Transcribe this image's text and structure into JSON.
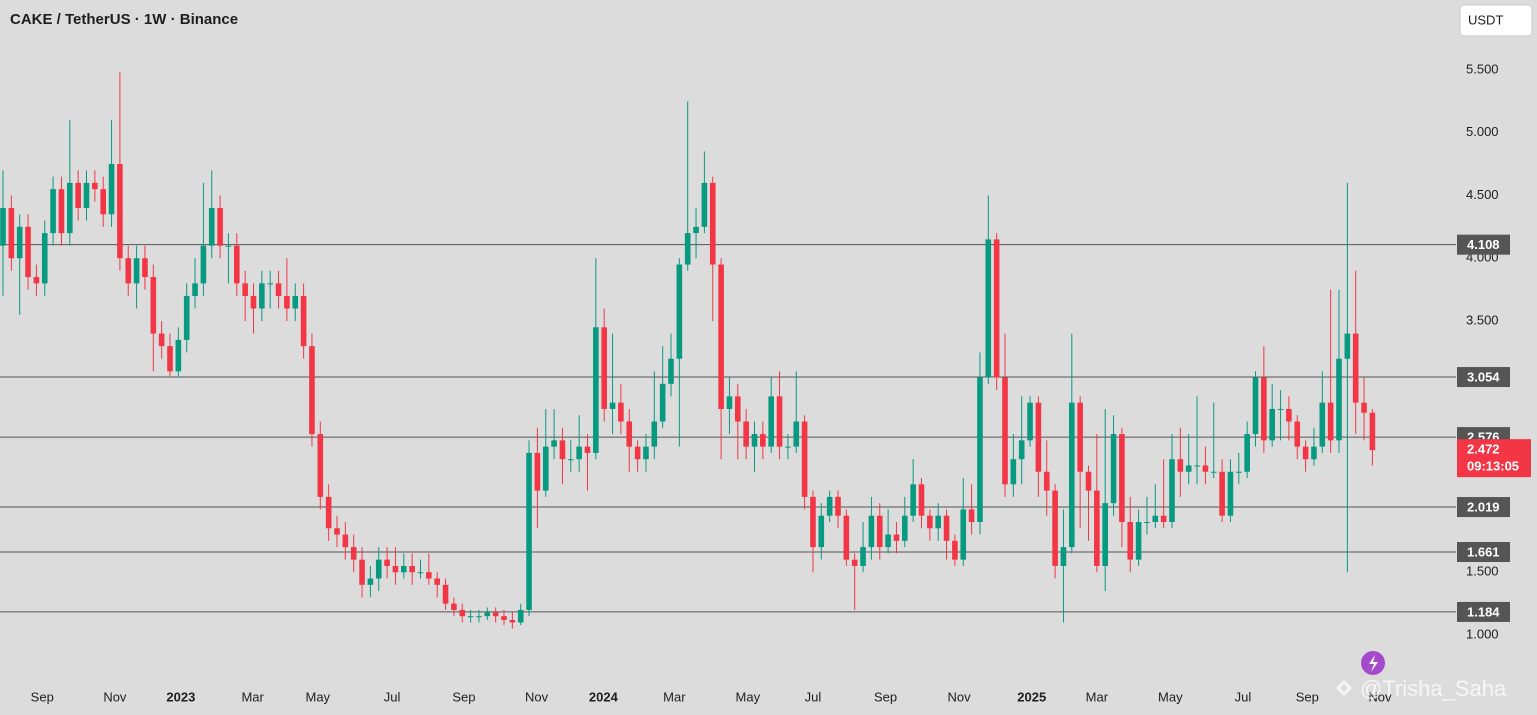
{
  "chart_data": {
    "type": "candlestick",
    "title": "CAKE / TetherUS · 1W · Binance",
    "currency": "USDT",
    "countdown": "09:13:05",
    "watermark": "@Trisha_Saha",
    "up_color": "#089981",
    "down_color": "#f23645",
    "level_color": "#555555",
    "open": [
      4.1,
      4.4,
      4.0,
      4.25,
      3.85,
      3.8,
      4.2,
      4.55,
      4.2,
      4.6,
      4.4,
      4.6,
      4.55,
      4.35,
      4.75,
      4.0,
      3.8,
      4.0,
      3.85,
      3.4,
      3.3,
      3.1,
      3.35,
      3.7,
      3.8,
      4.1,
      4.4,
      4.1,
      4.1,
      3.8,
      3.7,
      3.6,
      3.8,
      3.8,
      3.7,
      3.6,
      3.7,
      3.3,
      2.6,
      2.1,
      1.85,
      1.8,
      1.7,
      1.6,
      1.4,
      1.45,
      1.6,
      1.55,
      1.5,
      1.55,
      1.5,
      1.5,
      1.45,
      1.4,
      1.25,
      1.2,
      1.15,
      1.15,
      1.15,
      1.18,
      1.15,
      1.12,
      1.1,
      1.2,
      2.45,
      2.15,
      2.5,
      2.55,
      2.4,
      2.4,
      2.5,
      2.45,
      3.45,
      2.8,
      2.85,
      2.7,
      2.5,
      2.4,
      2.5,
      2.7,
      3.0,
      3.2,
      3.95,
      4.2,
      4.25,
      4.6,
      3.95,
      2.8,
      2.9,
      2.7,
      2.5,
      2.6,
      2.5,
      2.9,
      2.5,
      2.5,
      2.7,
      2.1,
      1.7,
      1.95,
      2.1,
      1.95,
      1.6,
      1.55,
      1.7,
      1.95,
      1.7,
      1.8,
      1.75,
      1.95,
      2.2,
      1.95,
      1.85,
      1.95,
      1.75,
      1.6,
      2.0,
      1.9,
      3.05,
      4.15,
      3.05,
      2.2,
      2.4,
      2.55,
      2.85,
      2.3,
      2.15,
      1.55,
      1.7,
      2.85,
      2.3,
      2.15,
      1.55,
      2.05,
      2.6,
      1.9,
      1.6,
      1.9,
      1.9,
      1.95,
      1.9,
      2.4,
      2.3,
      2.35,
      2.35,
      2.3,
      2.3,
      1.95,
      2.3,
      2.3,
      2.6,
      3.05,
      2.55,
      2.8,
      2.8,
      2.7,
      2.5,
      2.4,
      2.5,
      2.85,
      2.55,
      3.2,
      3.4,
      2.85,
      2.77
    ],
    "high": [
      4.7,
      4.5,
      4.35,
      4.35,
      3.95,
      4.3,
      4.65,
      4.65,
      5.1,
      4.7,
      4.7,
      4.7,
      4.65,
      5.1,
      5.48,
      4.1,
      4.1,
      4.1,
      3.95,
      3.5,
      3.4,
      3.45,
      3.8,
      4.0,
      4.6,
      4.7,
      4.5,
      4.2,
      4.2,
      3.9,
      3.8,
      3.9,
      3.9,
      3.9,
      4.0,
      3.8,
      3.8,
      3.4,
      2.7,
      2.2,
      1.95,
      1.9,
      1.8,
      1.7,
      1.55,
      1.7,
      1.7,
      1.7,
      1.65,
      1.65,
      1.6,
      1.65,
      1.5,
      1.45,
      1.3,
      1.25,
      1.2,
      1.2,
      1.22,
      1.22,
      1.2,
      1.18,
      1.25,
      2.55,
      2.65,
      2.8,
      2.8,
      2.65,
      2.55,
      2.75,
      2.6,
      4.0,
      3.6,
      3.4,
      3.0,
      2.8,
      2.55,
      2.6,
      3.1,
      3.3,
      3.4,
      4.0,
      5.25,
      4.4,
      4.85,
      4.65,
      4.0,
      3.05,
      3.0,
      2.8,
      2.7,
      2.7,
      3.05,
      3.1,
      2.6,
      3.1,
      2.75,
      2.15,
      2.05,
      2.15,
      2.15,
      2.0,
      1.65,
      1.9,
      2.1,
      2.05,
      2.0,
      1.9,
      2.1,
      2.4,
      2.25,
      2.0,
      2.05,
      2.0,
      1.8,
      2.25,
      2.2,
      3.25,
      4.5,
      4.2,
      3.4,
      2.6,
      2.9,
      2.9,
      2.9,
      2.55,
      2.2,
      2.0,
      3.4,
      2.9,
      2.35,
      2.6,
      2.8,
      2.75,
      2.65,
      2.1,
      2.0,
      2.1,
      2.2,
      2.4,
      2.6,
      2.65,
      2.6,
      2.9,
      2.5,
      2.85,
      2.4,
      2.4,
      2.45,
      2.7,
      3.1,
      3.3,
      3.0,
      2.95,
      2.9,
      2.75,
      2.55,
      2.65,
      3.1,
      3.75,
      3.75,
      4.6,
      3.9,
      3.05,
      2.8
    ],
    "low": [
      3.7,
      3.9,
      3.55,
      3.75,
      3.7,
      3.7,
      4.1,
      4.1,
      4.1,
      4.3,
      4.3,
      4.45,
      4.25,
      4.25,
      3.9,
      3.7,
      3.6,
      3.75,
      3.1,
      3.2,
      3.05,
      3.05,
      3.25,
      3.6,
      3.7,
      4.0,
      4.0,
      3.8,
      3.7,
      3.5,
      3.4,
      3.5,
      3.6,
      3.6,
      3.5,
      3.5,
      3.2,
      2.5,
      2.0,
      1.75,
      1.7,
      1.6,
      1.5,
      1.3,
      1.3,
      1.35,
      1.45,
      1.4,
      1.45,
      1.4,
      1.45,
      1.4,
      1.3,
      1.2,
      1.15,
      1.1,
      1.1,
      1.1,
      1.12,
      1.1,
      1.08,
      1.05,
      1.08,
      1.15,
      1.85,
      2.1,
      2.4,
      2.2,
      2.3,
      2.3,
      2.15,
      2.4,
      2.7,
      2.6,
      2.6,
      2.3,
      2.3,
      2.3,
      2.4,
      2.65,
      2.9,
      2.5,
      3.9,
      4.0,
      4.2,
      3.5,
      2.4,
      2.6,
      2.4,
      2.4,
      2.3,
      2.4,
      2.45,
      2.4,
      2.4,
      2.45,
      2.0,
      1.5,
      1.6,
      1.9,
      1.85,
      1.55,
      1.2,
      1.5,
      1.6,
      1.6,
      1.65,
      1.65,
      1.7,
      1.9,
      1.85,
      1.75,
      1.75,
      1.6,
      1.55,
      1.55,
      1.8,
      1.8,
      3.0,
      2.95,
      2.1,
      2.1,
      2.2,
      2.5,
      2.1,
      1.95,
      1.45,
      1.1,
      1.65,
      1.85,
      1.75,
      1.5,
      1.35,
      1.95,
      1.7,
      1.5,
      1.55,
      1.8,
      1.85,
      1.85,
      1.85,
      2.1,
      2.2,
      2.2,
      2.2,
      2.25,
      1.9,
      1.9,
      2.2,
      2.25,
      2.5,
      2.45,
      2.5,
      2.55,
      2.55,
      2.4,
      2.3,
      2.35,
      2.45,
      2.45,
      2.45,
      1.5,
      2.6,
      2.55,
      2.35
    ],
    "close": [
      4.4,
      4.0,
      4.25,
      3.85,
      3.8,
      4.2,
      4.55,
      4.2,
      4.6,
      4.4,
      4.6,
      4.55,
      4.35,
      4.75,
      4.0,
      3.8,
      4.0,
      3.85,
      3.4,
      3.3,
      3.1,
      3.35,
      3.7,
      3.8,
      4.1,
      4.4,
      4.1,
      4.1,
      3.8,
      3.7,
      3.6,
      3.8,
      3.8,
      3.7,
      3.6,
      3.7,
      3.3,
      2.6,
      2.1,
      1.85,
      1.8,
      1.7,
      1.6,
      1.4,
      1.45,
      1.6,
      1.55,
      1.5,
      1.55,
      1.5,
      1.5,
      1.45,
      1.4,
      1.25,
      1.2,
      1.15,
      1.15,
      1.15,
      1.18,
      1.15,
      1.12,
      1.1,
      1.2,
      2.45,
      2.15,
      2.5,
      2.55,
      2.4,
      2.4,
      2.5,
      2.45,
      3.45,
      2.8,
      2.85,
      2.7,
      2.5,
      2.4,
      2.5,
      2.7,
      3.0,
      3.2,
      3.95,
      4.2,
      4.25,
      4.6,
      3.95,
      2.8,
      2.9,
      2.7,
      2.5,
      2.6,
      2.5,
      2.9,
      2.5,
      2.5,
      2.7,
      2.1,
      1.7,
      1.95,
      2.1,
      1.95,
      1.6,
      1.55,
      1.7,
      1.95,
      1.7,
      1.8,
      1.75,
      1.95,
      2.2,
      1.95,
      1.85,
      1.95,
      1.75,
      1.6,
      2.0,
      1.9,
      3.05,
      4.15,
      3.05,
      2.2,
      2.4,
      2.55,
      2.85,
      2.3,
      2.15,
      1.55,
      1.7,
      2.85,
      2.3,
      2.15,
      1.55,
      2.05,
      2.6,
      1.9,
      1.6,
      1.9,
      1.9,
      1.95,
      1.9,
      2.4,
      2.3,
      2.35,
      2.35,
      2.3,
      2.3,
      1.95,
      2.3,
      2.3,
      2.6,
      3.05,
      2.55,
      2.8,
      2.8,
      2.7,
      2.5,
      2.4,
      2.5,
      2.85,
      2.55,
      3.2,
      3.4,
      2.85,
      2.77,
      2.472
    ],
    "xticks": [
      {
        "value": 4.7,
        "label": "Sep"
      },
      {
        "value": 13.4,
        "label": "Nov"
      },
      {
        "value": 21.3,
        "label": "2023"
      },
      {
        "value": 29.9,
        "label": "Mar"
      },
      {
        "value": 37.7,
        "label": "May"
      },
      {
        "value": 46.6,
        "label": "Jul"
      },
      {
        "value": 55.2,
        "label": "Sep"
      },
      {
        "value": 63.9,
        "label": "Nov"
      },
      {
        "value": 71.9,
        "label": "2024"
      },
      {
        "value": 80.4,
        "label": "Mar"
      },
      {
        "value": 89.2,
        "label": "May"
      },
      {
        "value": 97,
        "label": "Jul"
      },
      {
        "value": 105.7,
        "label": "Sep"
      },
      {
        "value": 114.5,
        "label": "Nov"
      },
      {
        "value": 123.2,
        "label": "2025"
      },
      {
        "value": 131,
        "label": "Mar"
      },
      {
        "value": 139.8,
        "label": "May"
      },
      {
        "value": 148.5,
        "label": "Jul"
      },
      {
        "value": 156.2,
        "label": "Sep"
      },
      {
        "value": 164.9,
        "label": "Nov"
      }
    ],
    "ylim": [
      0.642,
      6.056
    ],
    "yticks": [
      {
        "value": 5.5,
        "label": "5.500"
      },
      {
        "value": 5,
        "label": "5.000"
      },
      {
        "value": 4.5,
        "label": "4.500"
      },
      {
        "value": 4,
        "label": "4.000"
      },
      {
        "value": 3.5,
        "label": "3.500"
      },
      {
        "value": 1.5,
        "label": "1.500"
      },
      {
        "value": 1,
        "label": "1.000"
      }
    ],
    "levels": [
      4.108,
      3.054,
      2.576,
      2.019,
      1.661,
      1.184
    ]
  }
}
